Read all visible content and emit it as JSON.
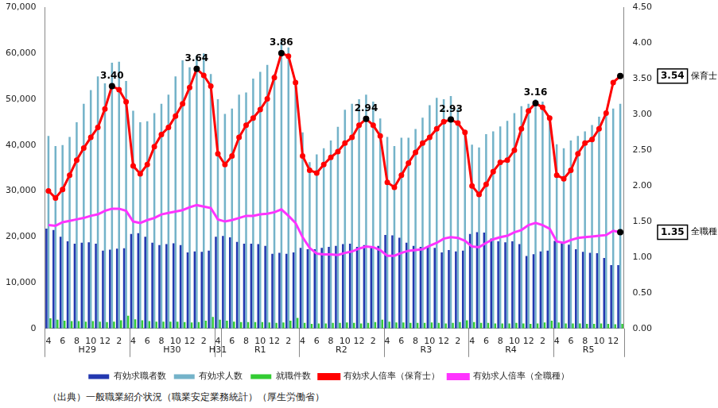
{
  "chart_data": {
    "type": "bar",
    "source": "（出典）一般職業紹介状況（職業安定業務統計）（厚生労働省）",
    "categories": [
      "4",
      null,
      "6",
      null,
      "8",
      null,
      "10",
      null,
      "12",
      null,
      "2",
      null,
      "4",
      null,
      "6",
      null,
      "8",
      null,
      "10",
      null,
      "12",
      null,
      "2",
      null,
      "4",
      null,
      "6",
      null,
      "8",
      null,
      "10",
      null,
      "12",
      null,
      "2",
      null,
      "4",
      null,
      "6",
      null,
      "8",
      null,
      "10",
      null,
      "12",
      null,
      "2",
      null,
      "4",
      null,
      "6",
      null,
      "8",
      null,
      "10",
      null,
      "12",
      null,
      "2",
      null,
      "4",
      null,
      "6",
      null,
      "8",
      null,
      "10",
      null,
      "12",
      null,
      "2",
      null,
      "4",
      null,
      "6",
      null,
      "8",
      null,
      "10",
      null,
      "12",
      null
    ],
    "periods": [
      {
        "label": "H29",
        "start": 0,
        "end": 11
      },
      {
        "label": "H30",
        "start": 12,
        "end": 23
      },
      {
        "label": "H31",
        "start": 24,
        "end": 24
      },
      {
        "label": "R1",
        "start": 25,
        "end": 35
      },
      {
        "label": "R2",
        "start": 36,
        "end": 47
      },
      {
        "label": "R3",
        "start": 48,
        "end": 59
      },
      {
        "label": "R4",
        "start": 60,
        "end": 71
      },
      {
        "label": "R5",
        "start": 72,
        "end": 81
      }
    ],
    "ylim": [
      0,
      70000
    ],
    "yticks": [
      0,
      {
        "value": 10000,
        "label": "10,000"
      },
      {
        "value": 20000,
        "label": "20,000"
      },
      {
        "value": 30000,
        "label": "30,000"
      },
      {
        "value": 40000,
        "label": "40,000"
      },
      {
        "value": 50000,
        "label": "50,000"
      },
      {
        "value": 60000,
        "label": "60,000"
      },
      {
        "value": 70000,
        "label": "70,000"
      }
    ],
    "y2lim": [
      0,
      4.5
    ],
    "y2ticks": [
      {
        "value": 0,
        "label": "0.00"
      },
      {
        "value": 0.5,
        "label": "0.50"
      },
      {
        "value": 1,
        "label": "1.00"
      },
      {
        "value": 1.5,
        "label": "1.50"
      },
      {
        "value": 2,
        "label": "2.00"
      },
      {
        "value": 2.5,
        "label": "2.50"
      },
      {
        "value": 3,
        "label": "3.00"
      },
      {
        "value": 3.5,
        "label": "3.50"
      },
      {
        "value": 4,
        "label": "4.00"
      },
      {
        "value": 4.5,
        "label": "4.50"
      }
    ],
    "grid": false,
    "legend": "bottom",
    "series": [
      {
        "name": "有効求職者数",
        "type": "bar",
        "color": "#2338b0",
        "values": [
          21800,
          21500,
          20000,
          19000,
          18500,
          18700,
          18800,
          18500,
          17000,
          17200,
          17400,
          17500,
          20600,
          20800,
          20000,
          18700,
          18200,
          18400,
          18600,
          18200,
          16600,
          16800,
          16700,
          17000,
          20000,
          20200,
          19900,
          18900,
          18500,
          18500,
          18400,
          18000,
          16300,
          16500,
          16300,
          16600,
          17600,
          17300,
          17300,
          17600,
          17800,
          18000,
          18400,
          18500,
          17800,
          18200,
          17900,
          18000,
          20400,
          20300,
          19800,
          18700,
          18000,
          17800,
          17800,
          17600,
          16600,
          17100,
          16800,
          17000,
          20600,
          21000,
          20900,
          19600,
          19000,
          18800,
          19000,
          18400,
          15800,
          16200,
          16800,
          17000,
          19100,
          18800,
          18300,
          17300,
          16700,
          16500,
          16400,
          15400,
          13800,
          13800
        ]
      },
      {
        "name": "有効求人数",
        "type": "bar",
        "color": "#74b3c9",
        "values": [
          42000,
          39800,
          40000,
          41800,
          45000,
          49000,
          52000,
          55000,
          53500,
          58000,
          58200,
          54000,
          47500,
          45000,
          45200,
          47000,
          49000,
          51000,
          55000,
          58500,
          57000,
          59500,
          60000,
          55500,
          50000,
          46800,
          48000,
          51000,
          51500,
          54500,
          56000,
          57500,
          55500,
          62800,
          61300,
          53000,
          42800,
          36300,
          38000,
          39300,
          41000,
          44000,
          47700,
          49000,
          50000,
          51000,
          49500,
          45800,
          41800,
          39800,
          41600,
          41600,
          43500,
          46000,
          48700,
          50300,
          50000,
          50700,
          48000,
          43300,
          40100,
          39500,
          42400,
          43000,
          44100,
          45300,
          47000,
          48500,
          49000,
          50000,
          49500,
          46000,
          40200,
          39300,
          41000,
          42000,
          43000,
          44400,
          46200,
          47200,
          48000,
          49000
        ]
      },
      {
        "name": "就職件数",
        "type": "bar",
        "color": "#33cc33",
        "values": [
          2200,
          1900,
          1700,
          1600,
          1600,
          1500,
          1600,
          1500,
          1400,
          1500,
          1800,
          2800,
          2000,
          1800,
          1600,
          1500,
          1500,
          1500,
          1500,
          1400,
          1300,
          1400,
          1700,
          2500,
          1900,
          1700,
          1500,
          1400,
          1400,
          1400,
          1400,
          1300,
          1200,
          1300,
          1700,
          2300,
          1200,
          1000,
          1100,
          1100,
          1200,
          1200,
          1300,
          1200,
          1100,
          1200,
          1400,
          1900,
          1500,
          1300,
          1300,
          1200,
          1200,
          1200,
          1300,
          1200,
          1100,
          1200,
          1400,
          1800,
          1400,
          1200,
          1200,
          1100,
          1100,
          1100,
          1200,
          1100,
          1000,
          1100,
          1300,
          1700,
          1300,
          1100,
          1100,
          1100,
          1000,
          1000,
          1100,
          1000,
          900,
          1000
        ]
      },
      {
        "name": "有効求人倍率（保育士）",
        "type": "line",
        "axis": "y2",
        "color": "#ff0000",
        "marker": "circle",
        "values": [
          1.93,
          1.83,
          1.95,
          2.15,
          2.36,
          2.53,
          2.68,
          2.82,
          3.08,
          3.4,
          3.35,
          3.18,
          2.28,
          2.17,
          2.3,
          2.55,
          2.72,
          2.82,
          2.98,
          3.15,
          3.38,
          3.64,
          3.55,
          3.4,
          2.45,
          2.3,
          2.42,
          2.68,
          2.85,
          2.95,
          3.07,
          3.22,
          3.52,
          3.86,
          3.82,
          3.45,
          2.42,
          2.22,
          2.18,
          2.3,
          2.4,
          2.48,
          2.6,
          2.68,
          2.85,
          2.94,
          2.85,
          2.7,
          2.05,
          1.98,
          2.15,
          2.32,
          2.47,
          2.6,
          2.68,
          2.8,
          2.9,
          2.93,
          2.88,
          2.75,
          2.0,
          1.88,
          2.02,
          2.2,
          2.33,
          2.36,
          2.5,
          2.8,
          3.05,
          3.16,
          3.1,
          2.95,
          2.15,
          2.1,
          2.22,
          2.45,
          2.6,
          2.65,
          2.8,
          3.02,
          3.45,
          3.54
        ],
        "point_labels": [
          {
            "index": 9,
            "label": "3.40"
          },
          {
            "index": 21,
            "label": "3.64"
          },
          {
            "index": 33,
            "label": "3.86"
          },
          {
            "index": 45,
            "label": "2.94"
          },
          {
            "index": 57,
            "label": "2.93"
          },
          {
            "index": 69,
            "label": "3.16"
          }
        ],
        "end_label": {
          "value_label": "3.54",
          "text": "保育士"
        }
      },
      {
        "name": "有効求人倍率（全職種）",
        "type": "line",
        "axis": "y2",
        "color": "#ff33ff",
        "marker": "none",
        "values": [
          1.45,
          1.44,
          1.49,
          1.51,
          1.53,
          1.55,
          1.58,
          1.6,
          1.65,
          1.68,
          1.68,
          1.65,
          1.5,
          1.48,
          1.52,
          1.55,
          1.6,
          1.62,
          1.64,
          1.66,
          1.7,
          1.73,
          1.71,
          1.69,
          1.53,
          1.5,
          1.52,
          1.55,
          1.58,
          1.58,
          1.6,
          1.61,
          1.63,
          1.67,
          1.58,
          1.48,
          1.28,
          1.13,
          1.05,
          1.04,
          1.04,
          1.03,
          1.06,
          1.08,
          1.12,
          1.15,
          1.14,
          1.1,
          1.02,
          1.02,
          1.06,
          1.09,
          1.1,
          1.11,
          1.16,
          1.2,
          1.26,
          1.28,
          1.27,
          1.23,
          1.15,
          1.14,
          1.2,
          1.25,
          1.28,
          1.3,
          1.35,
          1.38,
          1.45,
          1.48,
          1.45,
          1.4,
          1.22,
          1.2,
          1.24,
          1.27,
          1.28,
          1.29,
          1.3,
          1.31,
          1.37,
          1.35
        ],
        "end_label": {
          "value_label": "1.35",
          "text": "全職種"
        }
      }
    ]
  }
}
